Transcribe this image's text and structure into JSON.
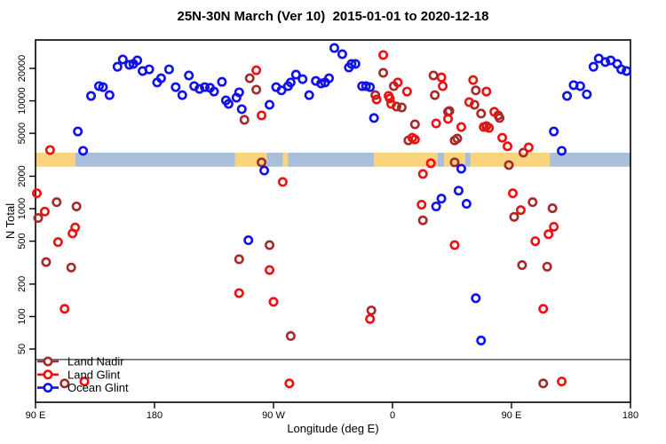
{
  "title": "25N-30N March (Ver 10)  2015-01-01 to 2020-12-18",
  "chart_data": {
    "type": "scatter",
    "title": "25N-30N March (Ver 10)  2015-01-01 to 2020-12-18",
    "xlabel": "Longitude (deg E)",
    "ylabel": "N Total",
    "y_scale": "log",
    "ylim": [
      16,
      36000
    ],
    "x_axis_span_deg": [
      90,
      540
    ],
    "x_ticks": [
      {
        "deg": 90,
        "label": "90 E"
      },
      {
        "deg": 180,
        "label": "180"
      },
      {
        "deg": 270,
        "label": "90 W"
      },
      {
        "deg": 360,
        "label": "0"
      },
      {
        "deg": 450,
        "label": "90 E"
      },
      {
        "deg": 540,
        "label": "180"
      }
    ],
    "y_ticks": [
      {
        "value": 50,
        "label": "50"
      },
      {
        "value": 100,
        "label": "100"
      },
      {
        "value": 200,
        "label": "200"
      },
      {
        "value": 500,
        "label": "500"
      },
      {
        "value": 1000,
        "label": "1000"
      },
      {
        "value": 2000,
        "label": "2000"
      },
      {
        "value": 5000,
        "label": "5000"
      },
      {
        "value": 10000,
        "label": "10000"
      },
      {
        "value": 20000,
        "label": "20000"
      }
    ],
    "grid": false,
    "h_line_n": 40,
    "h_line_color": "#5a5a5a",
    "legend_position": "bottom-left",
    "land_ocean_band": {
      "n_range": [
        2450,
        3310
      ],
      "land_color": "#FAD37E",
      "ocean_color": "#A9BFD9",
      "segments": [
        {
          "from": 90,
          "to": 120,
          "surface": "land"
        },
        {
          "from": 120,
          "to": 241,
          "surface": "ocean"
        },
        {
          "from": 241,
          "to": 265,
          "surface": "land"
        },
        {
          "from": 265,
          "to": 277,
          "surface": "ocean"
        },
        {
          "from": 277,
          "to": 281,
          "surface": "land"
        },
        {
          "from": 281,
          "to": 346,
          "surface": "ocean"
        },
        {
          "from": 346,
          "to": 394,
          "surface": "land"
        },
        {
          "from": 394,
          "to": 399,
          "surface": "ocean"
        },
        {
          "from": 399,
          "to": 415,
          "surface": "land"
        },
        {
          "from": 415,
          "to": 419,
          "surface": "ocean"
        },
        {
          "from": 419,
          "to": 479,
          "surface": "land"
        },
        {
          "from": 479,
          "to": 540,
          "surface": "ocean"
        }
      ]
    },
    "series": [
      {
        "name": "Land Nadir",
        "color": "#A52A2A",
        "points": [
          [
            92,
            820
          ],
          [
            98,
            320
          ],
          [
            106,
            1150
          ],
          [
            112,
            24
          ],
          [
            117,
            285
          ],
          [
            121,
            1050
          ],
          [
            244,
            340
          ],
          [
            248,
            6670
          ],
          [
            252,
            16200
          ],
          [
            257,
            12700
          ],
          [
            261,
            2690
          ],
          [
            267,
            460
          ],
          [
            283,
            66
          ],
          [
            344,
            114
          ],
          [
            347,
            11300
          ],
          [
            353,
            18200
          ],
          [
            361,
            13700
          ],
          [
            363,
            8850
          ],
          [
            367,
            8690
          ],
          [
            372,
            4300
          ],
          [
            377,
            6060
          ],
          [
            383,
            780
          ],
          [
            391,
            17200
          ],
          [
            392,
            11300
          ],
          [
            402,
            7910
          ],
          [
            403,
            8060
          ],
          [
            407,
            4300
          ],
          [
            407,
            2690
          ],
          [
            409,
            4470
          ],
          [
            422,
            9200
          ],
          [
            423,
            12500
          ],
          [
            427,
            7620
          ],
          [
            431,
            5830
          ],
          [
            440,
            7330
          ],
          [
            441,
            6930
          ],
          [
            448,
            2540
          ],
          [
            452,
            840
          ],
          [
            458,
            300
          ],
          [
            459,
            3310
          ],
          [
            466,
            1150
          ],
          [
            474,
            24
          ],
          [
            477,
            290
          ],
          [
            481,
            1010
          ]
        ]
      },
      {
        "name": "Land Glint",
        "color": "#EE1111",
        "points": [
          [
            91,
            1390
          ],
          [
            97,
            940
          ],
          [
            101,
            3500
          ],
          [
            107,
            490
          ],
          [
            112,
            118
          ],
          [
            118,
            590
          ],
          [
            120,
            670
          ],
          [
            127,
            25
          ],
          [
            244,
            165
          ],
          [
            257,
            19200
          ],
          [
            261,
            7330
          ],
          [
            267,
            270
          ],
          [
            270,
            137
          ],
          [
            277,
            1770
          ],
          [
            282,
            24
          ],
          [
            343,
            95
          ],
          [
            348,
            10300
          ],
          [
            353,
            26600
          ],
          [
            357,
            11100
          ],
          [
            358,
            10500
          ],
          [
            359,
            9370
          ],
          [
            364,
            14800
          ],
          [
            371,
            12200
          ],
          [
            375,
            4550
          ],
          [
            377,
            4380
          ],
          [
            382,
            1090
          ],
          [
            383,
            2100
          ],
          [
            389,
            2640
          ],
          [
            393,
            6170
          ],
          [
            397,
            16500
          ],
          [
            398,
            13700
          ],
          [
            402,
            6800
          ],
          [
            407,
            460
          ],
          [
            412,
            5720
          ],
          [
            418,
            9730
          ],
          [
            421,
            15600
          ],
          [
            429,
            5720
          ],
          [
            431,
            12200
          ],
          [
            433,
            5610
          ],
          [
            437,
            7910
          ],
          [
            443,
            4550
          ],
          [
            447,
            3790
          ],
          [
            451,
            1390
          ],
          [
            457,
            970
          ],
          [
            463,
            3700
          ],
          [
            468,
            500
          ],
          [
            474,
            118
          ],
          [
            478,
            580
          ],
          [
            482,
            680
          ],
          [
            488,
            25
          ]
        ]
      },
      {
        "name": "Ocean Glint",
        "color": "#1111EE",
        "points": [
          [
            122,
            5200
          ],
          [
            126,
            3440
          ],
          [
            132,
            11100
          ],
          [
            138,
            13700
          ],
          [
            141,
            13400
          ],
          [
            146,
            11300
          ],
          [
            152,
            20700
          ],
          [
            156,
            24200
          ],
          [
            161,
            21600
          ],
          [
            164,
            22000
          ],
          [
            167,
            23700
          ],
          [
            171,
            18900
          ],
          [
            176,
            19600
          ],
          [
            182,
            14800
          ],
          [
            185,
            16200
          ],
          [
            191,
            19600
          ],
          [
            196,
            13400
          ],
          [
            201,
            11300
          ],
          [
            206,
            17200
          ],
          [
            210,
            13700
          ],
          [
            214,
            12900
          ],
          [
            218,
            13400
          ],
          [
            222,
            13200
          ],
          [
            225,
            12200
          ],
          [
            231,
            15000
          ],
          [
            234,
            10100
          ],
          [
            236,
            9370
          ],
          [
            242,
            10700
          ],
          [
            244,
            12000
          ],
          [
            246,
            8370
          ],
          [
            251,
            510
          ],
          [
            263,
            2260
          ],
          [
            267,
            9200
          ],
          [
            272,
            13400
          ],
          [
            276,
            12500
          ],
          [
            281,
            13700
          ],
          [
            283,
            14800
          ],
          [
            287,
            17500
          ],
          [
            292,
            15900
          ],
          [
            297,
            11300
          ],
          [
            302,
            15300
          ],
          [
            306,
            14500
          ],
          [
            309,
            14800
          ],
          [
            312,
            16200
          ],
          [
            316,
            30900
          ],
          [
            322,
            27100
          ],
          [
            327,
            20400
          ],
          [
            329,
            22000
          ],
          [
            332,
            22000
          ],
          [
            337,
            13700
          ],
          [
            340,
            13700
          ],
          [
            343,
            13400
          ],
          [
            346,
            6930
          ],
          [
            393,
            1050
          ],
          [
            397,
            1240
          ],
          [
            410,
            1470
          ],
          [
            412,
            2350
          ],
          [
            416,
            1110
          ],
          [
            423,
            148
          ],
          [
            427,
            60
          ],
          [
            482,
            5200
          ],
          [
            488,
            3440
          ],
          [
            492,
            11100
          ],
          [
            497,
            14000
          ],
          [
            502,
            13700
          ],
          [
            507,
            11500
          ],
          [
            512,
            20700
          ],
          [
            516,
            24700
          ],
          [
            521,
            22900
          ],
          [
            525,
            23700
          ],
          [
            530,
            22000
          ],
          [
            533,
            19600
          ],
          [
            537,
            18900
          ]
        ]
      }
    ]
  }
}
